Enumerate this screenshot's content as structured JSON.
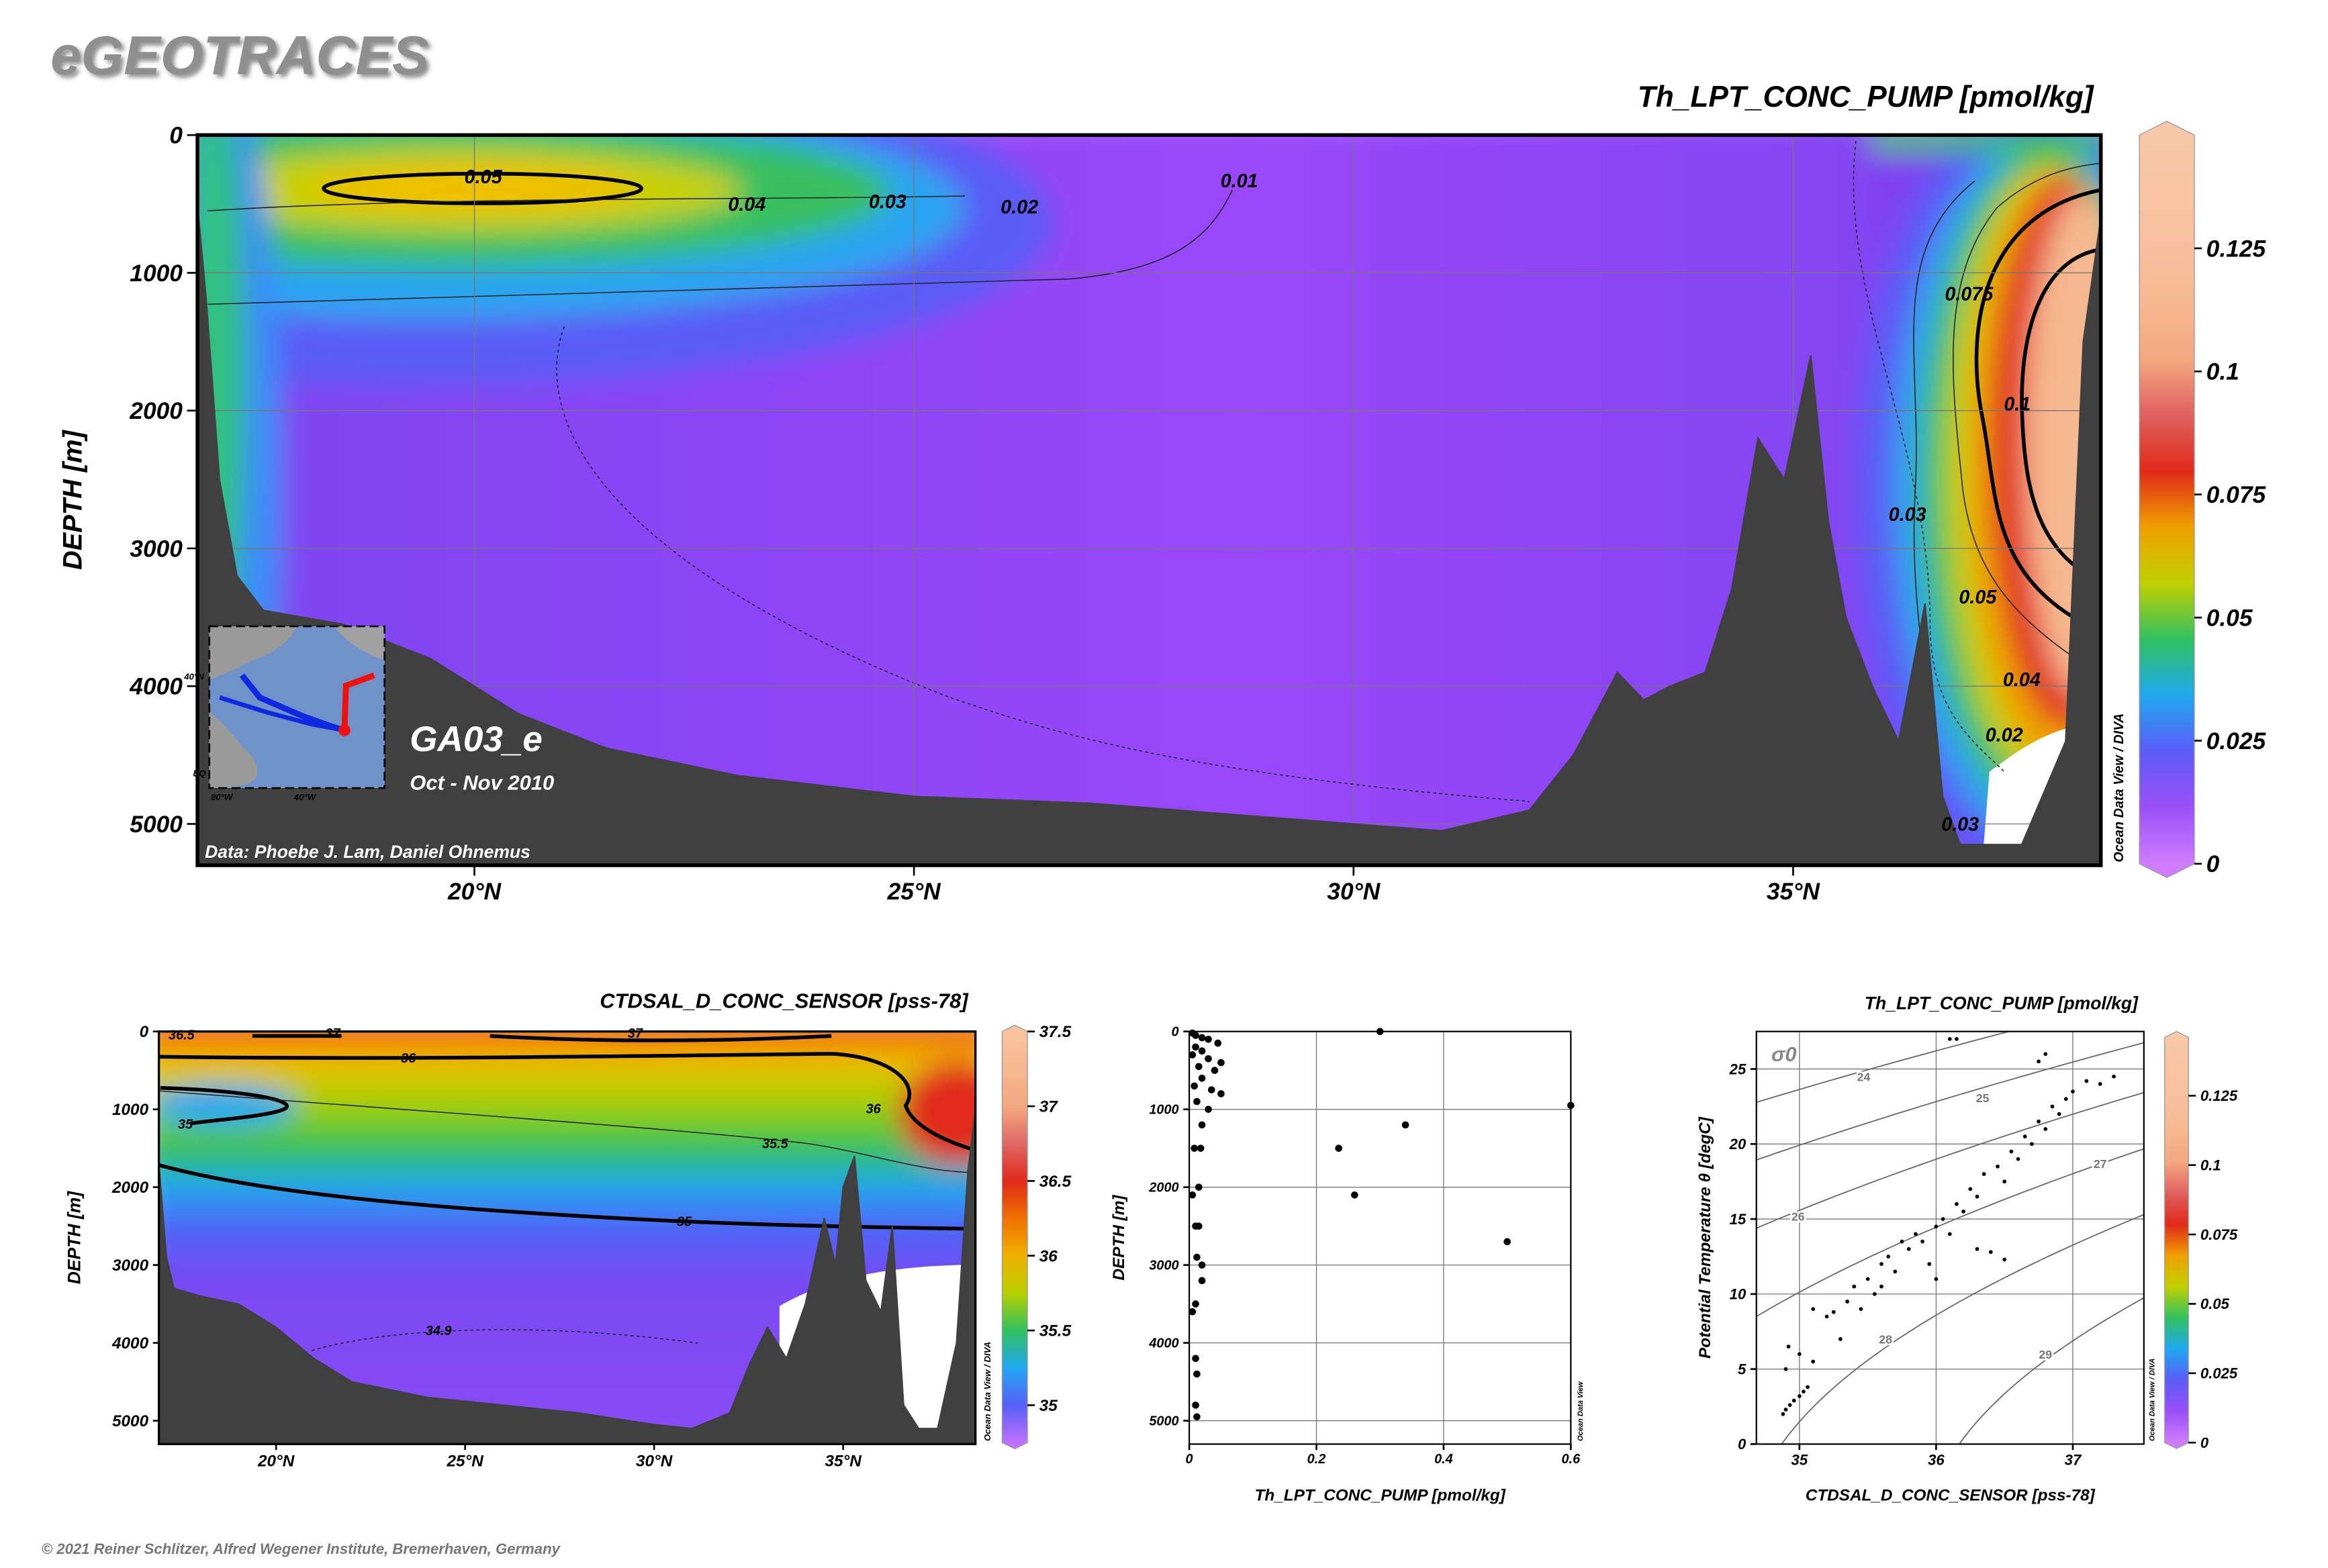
{
  "header": {
    "title": "eGEOTRACES"
  },
  "footer": {
    "credit": "© 2021 Reiner Schlitzer, Alfred Wegener Institute, Bremerhaven, Germany"
  },
  "chart_data": [
    {
      "type": "section",
      "title": "Th_LPT_CONC_PUMP [pmol/kg]",
      "ylabel": "DEPTH [m]",
      "xlim": [
        16.85,
        38.5
      ],
      "xticks": [
        {
          "value": 20,
          "label": "20°N"
        },
        {
          "value": 25,
          "label": "25°N"
        },
        {
          "value": 30,
          "label": "30°N"
        },
        {
          "value": 35,
          "label": "35°N"
        }
      ],
      "ylim": [
        0,
        5300
      ],
      "yticks": [
        0,
        1000,
        2000,
        3000,
        4000,
        5000
      ],
      "yreverse": true,
      "grid": true,
      "colorbar": {
        "clim": [
          0,
          0.148
        ],
        "ticks": [
          0,
          0.025,
          0.05,
          0.075,
          0.1,
          0.125
        ],
        "colormap": [
          "#d07cff",
          "#9a50f8",
          "#5c5cf8",
          "#20a8f0",
          "#30c060",
          "#c0d000",
          "#f0a000",
          "#e02a1a",
          "#e06060",
          "#f4a880",
          "#f6b890",
          "#f8c0a0",
          "#f8c4a2",
          "#f8c8a8"
        ]
      },
      "contours": [
        {
          "value": 0.05,
          "x": 20.1,
          "y": 350
        },
        {
          "value": 0.04,
          "x": 23.1,
          "y": 550
        },
        {
          "value": 0.03,
          "x": 24.7,
          "y": 530
        },
        {
          "value": 0.02,
          "x": 26.2,
          "y": 570
        },
        {
          "value": 0.01,
          "x": 28.7,
          "y": 380
        },
        {
          "value": 0.075,
          "x": 37.0,
          "y": 1200
        },
        {
          "value": 0.1,
          "x": 37.55,
          "y": 2000
        },
        {
          "value": 0.03,
          "x": 36.3,
          "y": 2800
        },
        {
          "value": 0.05,
          "x": 37.1,
          "y": 3400
        },
        {
          "value": 0.04,
          "x": 37.6,
          "y": 4000
        },
        {
          "value": 0.02,
          "x": 37.4,
          "y": 4400
        },
        {
          "value": 0.03,
          "x": 36.9,
          "y": 5050
        }
      ],
      "bathymetry": {
        "x": [
          16.85,
          16.95,
          17.1,
          17.3,
          17.6,
          18.5,
          19.5,
          20.5,
          21.5,
          23,
          25,
          27,
          29,
          30,
          31,
          32,
          32.5,
          33,
          33.3,
          33.6,
          34,
          34.3,
          34.6,
          34.9,
          35.2,
          35.4,
          35.6,
          35.9,
          36.2,
          36.5,
          36.7,
          36.9,
          37.2,
          37.6,
          37.9,
          38.1,
          38.3,
          38.5
        ],
        "depth": [
          500,
          1200,
          2500,
          3200,
          3450,
          3550,
          3800,
          4200,
          4450,
          4650,
          4800,
          4850,
          4950,
          5000,
          5050,
          4900,
          4500,
          3900,
          4100,
          4000,
          3900,
          3300,
          2200,
          2500,
          1600,
          2800,
          3500,
          4000,
          4400,
          3400,
          4800,
          5150,
          5150,
          5150,
          4700,
          4400,
          1500,
          600
        ],
        "color": "#404040"
      },
      "cruise": "GA03_e",
      "period": "Oct - Nov 2010",
      "credit": "Data: Phoebe J. Lam, Daniel Ohnemus",
      "watermark": "Ocean Data View / DIVA",
      "inset_labels": [
        "40°N",
        "EQ",
        "80°W",
        "40°W"
      ]
    },
    {
      "type": "section",
      "title": "CTDSAL_D_CONC_SENSOR [pss-78]",
      "ylabel": "DEPTH [m]",
      "xlim": [
        16.9,
        38.5
      ],
      "xticks": [
        {
          "value": 20,
          "label": "20°N"
        },
        {
          "value": 25,
          "label": "25°N"
        },
        {
          "value": 30,
          "label": "30°N"
        },
        {
          "value": 35,
          "label": "35°N"
        }
      ],
      "ylim": [
        0,
        5300
      ],
      "yticks": [
        0,
        1000,
        2000,
        3000,
        4000,
        5000
      ],
      "yreverse": true,
      "grid": false,
      "colorbar": {
        "clim": [
          34.75,
          37.5
        ],
        "ticks": [
          35,
          35.5,
          36,
          36.5,
          37,
          37.5
        ],
        "colormap": [
          "#c070ff",
          "#5860f8",
          "#20a8f0",
          "#30c060",
          "#b8d000",
          "#f0b000",
          "#f07000",
          "#e02a1a",
          "#e06868",
          "#f4a880",
          "#f6b890",
          "#f8c4a0"
        ]
      },
      "contours": [
        {
          "value": 36.5,
          "x": 17.5,
          "y": 100
        },
        {
          "value": 37,
          "x": 21.5,
          "y": 80
        },
        {
          "value": 37,
          "x": 29.5,
          "y": 80
        },
        {
          "value": 36,
          "x": 23.5,
          "y": 400
        },
        {
          "value": 35,
          "x": 17.6,
          "y": 1250
        },
        {
          "value": 35.5,
          "x": 33.2,
          "y": 1500
        },
        {
          "value": 36,
          "x": 35.8,
          "y": 1050
        },
        {
          "value": 35,
          "x": 30.8,
          "y": 2500
        },
        {
          "value": 34.9,
          "x": 24.3,
          "y": 3900
        }
      ],
      "bathymetry": {
        "x": [
          16.9,
          17.1,
          17.3,
          18,
          19,
          20,
          21,
          22,
          24,
          26,
          28,
          30,
          31,
          32,
          32.5,
          33,
          33.5,
          34,
          34.5,
          34.8,
          35,
          35.3,
          35.6,
          36,
          36.3,
          36.6,
          37,
          37.5,
          38,
          38.3,
          38.5
        ],
        "depth": [
          1700,
          2900,
          3300,
          3400,
          3500,
          3800,
          4200,
          4500,
          4700,
          4800,
          4900,
          5050,
          5100,
          4900,
          4300,
          3800,
          4200,
          3500,
          2400,
          3000,
          2000,
          1600,
          3200,
          3600,
          2500,
          4800,
          5100,
          5100,
          4000,
          1800,
          1000
        ],
        "color": "#404040"
      },
      "watermark": "Ocean Data View / DIVA"
    },
    {
      "type": "scatter",
      "xlabel": "Th_LPT_CONC_PUMP [pmol/kg]",
      "ylabel": "DEPTH [m]",
      "xlim": [
        0,
        0.6
      ],
      "xticks": [
        0,
        0.2,
        0.4,
        0.6
      ],
      "ylim": [
        0,
        5300
      ],
      "yticks": [
        0,
        1000,
        2000,
        3000,
        4000,
        5000
      ],
      "yreverse": true,
      "grid": true,
      "color": "#000000",
      "x": [
        0.005,
        0.01,
        0.02,
        0.03,
        0.045,
        0.01,
        0.02,
        0.005,
        0.03,
        0.05,
        0.015,
        0.04,
        0.02,
        0.008,
        0.035,
        0.05,
        0.012,
        0.03,
        0.02,
        0.008,
        0.018,
        0.015,
        0.005,
        0.01,
        0.015,
        0.012,
        0.02,
        0.02,
        0.01,
        0.005,
        0.01,
        0.012,
        0.01,
        0.012,
        0.3,
        0.6,
        0.235,
        0.34,
        0.26,
        0.5
      ],
      "y": [
        20,
        50,
        80,
        100,
        150,
        200,
        250,
        300,
        350,
        400,
        450,
        500,
        600,
        700,
        750,
        800,
        900,
        1000,
        1200,
        1500,
        1500,
        2000,
        2100,
        2500,
        2500,
        2900,
        3000,
        3200,
        3500,
        3600,
        4200,
        4400,
        4800,
        4950,
        0,
        950,
        1500,
        1200,
        2100,
        2700
      ],
      "watermark": "Ocean Data View"
    },
    {
      "type": "scatter",
      "title": "Th_LPT_CONC_PUMP [pmol/kg]",
      "xlabel": "CTDSAL_D_CONC_SENSOR [pss-78]",
      "ylabel": "Potential Temperature θ [degC]",
      "xlim": [
        34.685,
        37.52
      ],
      "xticks": [
        35,
        36,
        37
      ],
      "ylim": [
        0,
        27.5
      ],
      "yticks": [
        0,
        5,
        10,
        15,
        20,
        25
      ],
      "yreverse": false,
      "grid": true,
      "color": "#000000",
      "x": [
        34.88,
        34.9,
        34.93,
        34.96,
        35.0,
        35.03,
        35.06,
        34.9,
        34.92,
        35.0,
        35.1,
        35.2,
        35.25,
        35.1,
        35.35,
        35.4,
        35.5,
        35.45,
        35.6,
        35.65,
        35.7,
        35.55,
        35.8,
        35.85,
        35.9,
        35.95,
        36.0,
        36.05,
        36.1,
        36.15,
        36.2,
        36.25,
        36.3,
        36.3,
        36.4,
        36.5,
        36.35,
        36.45,
        36.5,
        36.55,
        36.6,
        36.65,
        36.7,
        36.75,
        36.8,
        36.85,
        36.9,
        36.95,
        37.0,
        37.1,
        37.2,
        37.3,
        36.8,
        36.75,
        36.1,
        36.15,
        35.6,
        35.75,
        35.3,
        36.0
      ],
      "y": [
        2,
        2.3,
        2.6,
        2.9,
        3.2,
        3.5,
        3.8,
        5,
        6.5,
        6,
        5.5,
        8.5,
        8.8,
        9,
        9.5,
        10.5,
        11,
        9,
        12,
        12.5,
        11.5,
        10,
        13,
        14,
        13.5,
        12,
        14.5,
        15,
        14,
        16,
        15.5,
        17,
        16.5,
        13,
        12.8,
        12.3,
        18,
        18.5,
        17.5,
        19.5,
        19,
        20.5,
        20,
        21.5,
        21,
        22.5,
        22,
        23,
        23.5,
        24.2,
        24,
        24.5,
        26,
        25.5,
        27,
        27,
        10.5,
        13.5,
        7,
        11
      ],
      "isopycnals": [
        {
          "value": 24,
          "x": 35.47,
          "y": 24.2
        },
        {
          "value": 25,
          "x": 36.34,
          "y": 22.8
        },
        {
          "value": 26,
          "x": 34.99,
          "y": 14.9
        },
        {
          "value": 27,
          "x": 37.2,
          "y": 18.4
        },
        {
          "value": 28,
          "x": 35.63,
          "y": 6.7
        },
        {
          "value": 29,
          "x": 36.8,
          "y": 5.7
        }
      ],
      "sigma_label": "σ0",
      "colorbar": {
        "clim": [
          0,
          0.146
        ],
        "ticks": [
          0,
          0.025,
          0.05,
          0.075,
          0.1,
          0.125
        ],
        "colormap": [
          "#d07cff",
          "#9a50f8",
          "#5c5cf8",
          "#20a8f0",
          "#30c060",
          "#c0d000",
          "#f0a000",
          "#e02a1a",
          "#e06060",
          "#f4a880",
          "#f6b890",
          "#f8c0a0",
          "#f8c4a2",
          "#f8c8a8"
        ]
      },
      "watermark": "Ocean Data View / DIVA"
    }
  ]
}
